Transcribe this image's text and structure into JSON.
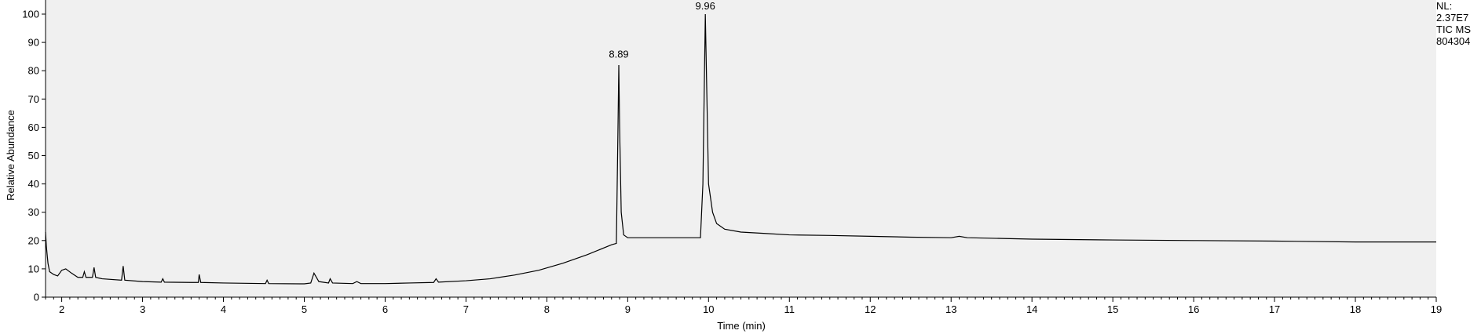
{
  "chart_data": {
    "type": "line",
    "xlabel": "Time (min)",
    "ylabel": "Relative Abundance",
    "xlim": [
      1.8,
      19
    ],
    "ylim": [
      0,
      100
    ],
    "x_ticks": [
      2,
      3,
      4,
      5,
      6,
      7,
      8,
      9,
      10,
      11,
      12,
      13,
      14,
      15,
      16,
      17,
      18,
      19
    ],
    "y_ticks": [
      0,
      10,
      20,
      30,
      40,
      50,
      60,
      70,
      80,
      90,
      100
    ],
    "grid": false,
    "background": "#f0f0f0",
    "line_color": "#000000",
    "peak_labels": [
      {
        "x": 8.89,
        "y": 83,
        "label": "8.89"
      },
      {
        "x": 9.96,
        "y": 100,
        "label": "9.96"
      }
    ],
    "series": [
      {
        "points": [
          [
            1.8,
            23
          ],
          [
            1.81,
            18
          ],
          [
            1.83,
            12
          ],
          [
            1.85,
            9
          ],
          [
            1.9,
            8
          ],
          [
            1.95,
            7.5
          ],
          [
            2.0,
            9.5
          ],
          [
            2.05,
            10
          ],
          [
            2.12,
            8.5
          ],
          [
            2.2,
            7
          ],
          [
            2.26,
            7
          ],
          [
            2.28,
            9
          ],
          [
            2.3,
            7
          ],
          [
            2.38,
            7
          ],
          [
            2.4,
            10.5
          ],
          [
            2.42,
            7
          ],
          [
            2.5,
            6.5
          ],
          [
            2.74,
            6
          ],
          [
            2.76,
            11
          ],
          [
            2.78,
            6
          ],
          [
            3.0,
            5.5
          ],
          [
            3.23,
            5.3
          ],
          [
            3.25,
            6.5
          ],
          [
            3.27,
            5.3
          ],
          [
            3.6,
            5.2
          ],
          [
            3.69,
            5.2
          ],
          [
            3.7,
            8
          ],
          [
            3.72,
            5.2
          ],
          [
            4.0,
            5
          ],
          [
            4.52,
            4.8
          ],
          [
            4.54,
            6
          ],
          [
            4.56,
            4.8
          ],
          [
            5.0,
            4.7
          ],
          [
            5.08,
            5
          ],
          [
            5.12,
            8.5
          ],
          [
            5.18,
            5.5
          ],
          [
            5.3,
            5
          ],
          [
            5.32,
            6.5
          ],
          [
            5.35,
            5
          ],
          [
            5.6,
            4.8
          ],
          [
            5.65,
            5.5
          ],
          [
            5.7,
            4.8
          ],
          [
            6.0,
            4.8
          ],
          [
            6.3,
            5
          ],
          [
            6.6,
            5.2
          ],
          [
            6.63,
            6.5
          ],
          [
            6.66,
            5.3
          ],
          [
            7.0,
            5.8
          ],
          [
            7.3,
            6.5
          ],
          [
            7.6,
            7.8
          ],
          [
            7.9,
            9.5
          ],
          [
            8.2,
            12
          ],
          [
            8.5,
            15
          ],
          [
            8.8,
            18.5
          ],
          [
            8.86,
            19
          ],
          [
            8.88,
            60
          ],
          [
            8.89,
            82
          ],
          [
            8.9,
            60
          ],
          [
            8.92,
            30
          ],
          [
            8.95,
            22
          ],
          [
            9.0,
            21
          ],
          [
            9.3,
            21
          ],
          [
            9.6,
            21
          ],
          [
            9.9,
            21
          ],
          [
            9.93,
            40
          ],
          [
            9.96,
            100
          ],
          [
            9.98,
            70
          ],
          [
            10.0,
            40
          ],
          [
            10.05,
            30
          ],
          [
            10.1,
            26
          ],
          [
            10.2,
            24
          ],
          [
            10.4,
            23
          ],
          [
            10.7,
            22.5
          ],
          [
            11.0,
            22
          ],
          [
            11.5,
            21.8
          ],
          [
            12.0,
            21.5
          ],
          [
            12.5,
            21.2
          ],
          [
            13.0,
            21
          ],
          [
            13.1,
            21.5
          ],
          [
            13.2,
            21
          ],
          [
            14.0,
            20.5
          ],
          [
            15.0,
            20.2
          ],
          [
            16.0,
            20
          ],
          [
            17.0,
            19.8
          ],
          [
            18.0,
            19.5
          ],
          [
            19.0,
            19.5
          ]
        ]
      }
    ]
  },
  "info": {
    "nl_label": "NL:",
    "nl_value": "2.37E7",
    "trace": "TIC  MS",
    "sample": "804304"
  }
}
